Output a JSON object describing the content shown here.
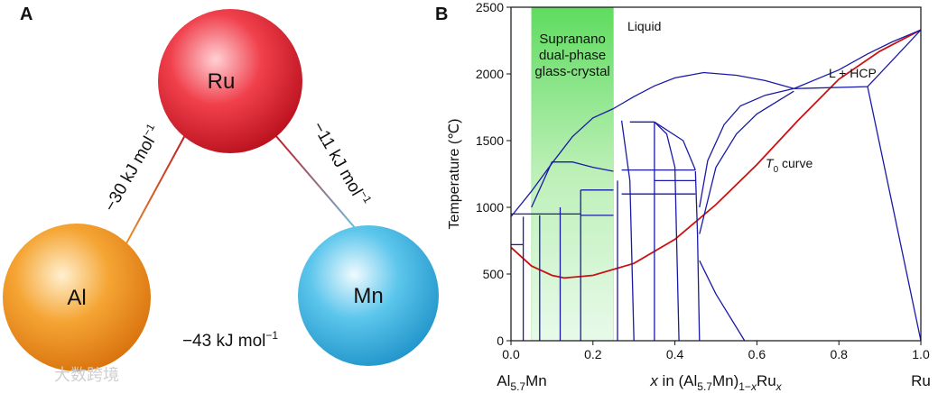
{
  "panel_a": {
    "label": "A",
    "elements": [
      {
        "symbol": "Ru"
      },
      {
        "symbol": "Al"
      },
      {
        "symbol": "Mn"
      }
    ],
    "bonds": [
      {
        "energy": "−30 kJ mol",
        "exponent": "−1"
      },
      {
        "energy": "−11 kJ mol",
        "exponent": "−1"
      },
      {
        "energy": "−43 kJ mol",
        "exponent": "−1"
      }
    ]
  },
  "watermark": "大数跨境",
  "chart_data": {
    "type": "line",
    "panel_label": "B",
    "ylabel": "Temperature (℃)",
    "xlabel": [
      {
        "t": "x",
        "style": "italic"
      },
      {
        "t": " in (Al"
      },
      {
        "t": "5.7",
        "style": "sub"
      },
      {
        "t": "Mn)"
      },
      {
        "t": "1−",
        "style": "sub"
      },
      {
        "t": "x",
        "style": "sub-italic"
      },
      {
        "t": "Ru"
      },
      {
        "t": "x",
        "style": "sub-italic"
      }
    ],
    "x_end_labels": [
      [
        {
          "t": "Al"
        },
        {
          "t": "5.7",
          "style": "sub"
        },
        {
          "t": "Mn"
        }
      ],
      [
        {
          "t": "Ru"
        }
      ]
    ],
    "xlim": [
      0,
      1
    ],
    "ylim": [
      0,
      2500
    ],
    "xticks": [
      {
        "value": 0,
        "label": "0.0"
      },
      {
        "value": 0.2,
        "label": "0.2"
      },
      {
        "value": 0.4,
        "label": "0.4"
      },
      {
        "value": 0.6,
        "label": "0.6"
      },
      {
        "value": 0.8,
        "label": "0.8"
      },
      {
        "value": 1,
        "label": "1.0"
      }
    ],
    "yticks": [
      0,
      500,
      1000,
      1500,
      2000,
      2500
    ],
    "shade": {
      "x": [
        0.05,
        0.25
      ],
      "color": "#5fdc5f",
      "label": [
        "Supranano",
        "dual-phase",
        "glass-crystal"
      ]
    },
    "annotations": [
      [
        {
          "t": "Liquid"
        }
      ],
      [
        {
          "t": "L + HCP"
        }
      ],
      [
        {
          "t": "T",
          "style": "italic"
        },
        {
          "t": "0",
          "style": "sub"
        },
        {
          "t": " curve"
        }
      ]
    ],
    "series": [
      {
        "color": "#cc1111",
        "x": [
          0,
          0.05,
          0.1,
          0.13,
          0.2,
          0.3,
          0.4,
          0.5,
          0.6,
          0.7,
          0.8,
          0.9,
          1.0
        ],
        "values": [
          700,
          560,
          490,
          470,
          490,
          580,
          760,
          1020,
          1320,
          1650,
          1960,
          2170,
          2330
        ]
      },
      {
        "color": "#1a1aa8",
        "x": [
          0,
          0.05,
          0.1,
          0.15,
          0.2,
          0.25
        ],
        "values": [
          930,
          1120,
          1330,
          1530,
          1670,
          1740
        ]
      },
      {
        "color": "#1a1aa8",
        "x": [
          0.25,
          0.3,
          0.35,
          0.4,
          0.47,
          0.55,
          0.62,
          0.69
        ],
        "values": [
          1740,
          1830,
          1910,
          1970,
          2010,
          1990,
          1950,
          1890
        ]
      },
      {
        "color": "#1a1aa8",
        "x": [
          0.69,
          0.8,
          0.87,
          0.93,
          1.0
        ],
        "values": [
          1890,
          2030,
          2150,
          2240,
          2330
        ]
      },
      {
        "color": "#1a1aa8",
        "x": [
          0.69,
          0.87
        ],
        "values": [
          1890,
          1905
        ]
      },
      {
        "color": "#1a1aa8",
        "x": [
          0.87,
          1.0
        ],
        "values": [
          1905,
          0
        ]
      },
      {
        "color": "#1a1aa8",
        "x": [
          0.87,
          0.93,
          1.0
        ],
        "values": [
          1905,
          2100,
          2330
        ]
      },
      {
        "color": "#1a1aa8",
        "x": [
          0.46,
          0.48,
          0.52,
          0.56,
          0.62,
          0.69
        ],
        "values": [
          1000,
          1350,
          1620,
          1760,
          1840,
          1890
        ]
      },
      {
        "color": "#1a1aa8",
        "x": [
          0.46,
          0.5,
          0.55,
          0.6,
          0.69
        ],
        "values": [
          800,
          1300,
          1550,
          1700,
          1870
        ]
      },
      {
        "color": "#1a1aa8",
        "x": [
          0.46,
          0.5,
          0.57
        ],
        "values": [
          600,
          350,
          0
        ]
      },
      {
        "color": "#1a1aa8",
        "x": [
          0.45,
          0.455,
          0.46
        ],
        "values": [
          1270,
          800,
          0
        ]
      },
      {
        "color": "#1a1aa8",
        "x": [
          0.05,
          0.1,
          0.15,
          0.2,
          0.25
        ],
        "values": [
          1000,
          1340,
          1340,
          1300,
          1270
        ]
      },
      {
        "color": "#1a1aa8",
        "x": [
          0,
          0.17
        ],
        "values": [
          950,
          950
        ]
      },
      {
        "color": "#1a1aa8",
        "x": [
          0,
          0.03
        ],
        "values": [
          720,
          720
        ]
      },
      {
        "color": "#1a1aa8",
        "x": [
          0.03,
          0.03
        ],
        "values": [
          0,
          930
        ]
      },
      {
        "color": "#1a1aa8",
        "x": [
          0.07,
          0.07
        ],
        "values": [
          0,
          940
        ]
      },
      {
        "color": "#1a1aa8",
        "x": [
          0.12,
          0.12
        ],
        "values": [
          0,
          1000
        ]
      },
      {
        "color": "#1a1aa8",
        "x": [
          0.17,
          0.17
        ],
        "values": [
          0,
          1130
        ]
      },
      {
        "color": "#1a1aa8",
        "x": [
          0.17,
          0.25
        ],
        "values": [
          1130,
          1130
        ]
      },
      {
        "color": "#1a1aa8",
        "x": [
          0.17,
          0.25
        ],
        "values": [
          940,
          940
        ]
      },
      {
        "color": "#1a1aa8",
        "x": [
          0.26,
          0.26
        ],
        "values": [
          0,
          1200
        ]
      },
      {
        "color": "#1a1aa8",
        "x": [
          0.27,
          0.29,
          0.3
        ],
        "values": [
          1650,
          1200,
          0
        ]
      },
      {
        "color": "#1a1aa8",
        "x": [
          0.29,
          0.35
        ],
        "values": [
          1640,
          1640
        ]
      },
      {
        "color": "#1a1aa8",
        "x": [
          0.35,
          0.35
        ],
        "values": [
          0,
          1640
        ]
      },
      {
        "color": "#1a1aa8",
        "x": [
          0.27,
          0.45
        ],
        "values": [
          1280,
          1280
        ]
      },
      {
        "color": "#1a1aa8",
        "x": [
          0.27,
          0.45
        ],
        "values": [
          1100,
          1100
        ]
      },
      {
        "color": "#1a1aa8",
        "x": [
          0.35,
          0.45
        ],
        "values": [
          1200,
          1200
        ]
      },
      {
        "color": "#1a1aa8",
        "x": [
          0.35,
          0.38,
          0.4,
          0.41
        ],
        "values": [
          1640,
          1550,
          1300,
          0
        ]
      },
      {
        "color": "#1a1aa8",
        "x": [
          0.35,
          0.42,
          0.45
        ],
        "values": [
          1640,
          1500,
          1280
        ]
      }
    ]
  }
}
